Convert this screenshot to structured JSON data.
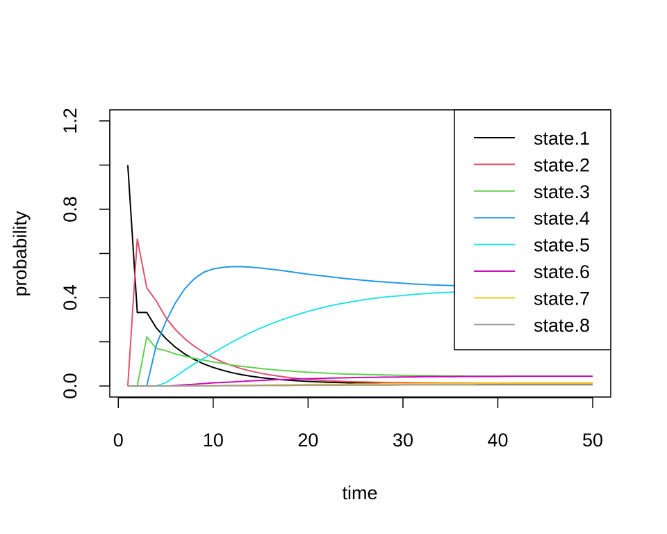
{
  "chart_data": {
    "type": "line",
    "title": "",
    "xlabel": "time",
    "ylabel": "probability",
    "xlim": [
      -0.9,
      51.9
    ],
    "ylim": [
      -0.05,
      1.25
    ],
    "xticks": [
      0,
      10,
      20,
      30,
      40,
      50
    ],
    "xtick_labels": [
      "0",
      "10",
      "20",
      "30",
      "40",
      "50"
    ],
    "yticks": [
      0.0,
      0.2,
      0.4,
      0.6,
      0.8,
      1.0,
      1.2
    ],
    "ytick_labels": [
      "0.0",
      "",
      "0.4",
      "",
      "0.8",
      "",
      "1.2"
    ],
    "grid": false,
    "legend": {
      "position": "top-right"
    },
    "x": [
      1,
      2,
      3,
      4,
      5,
      6,
      7,
      8,
      9,
      10,
      11,
      12,
      13,
      14,
      15,
      16,
      17,
      18,
      19,
      20,
      21,
      22,
      23,
      24,
      25,
      26,
      27,
      28,
      29,
      30,
      31,
      32,
      33,
      34,
      35,
      36,
      37,
      38,
      39,
      40,
      41,
      42,
      43,
      44,
      45,
      46,
      47,
      48,
      49,
      50
    ],
    "series": [
      {
        "name": "state.1",
        "color": "#000000",
        "values": [
          1.0,
          0.333,
          0.333,
          0.263,
          0.215,
          0.176,
          0.145,
          0.12,
          0.1,
          0.084,
          0.071,
          0.06,
          0.051,
          0.044,
          0.038,
          0.033,
          0.029,
          0.026,
          0.023,
          0.021,
          0.019,
          0.017,
          0.016,
          0.015,
          0.014,
          0.013,
          0.012,
          0.012,
          0.011,
          0.011,
          0.01,
          0.01,
          0.01,
          0.01,
          0.01,
          0.01,
          0.01,
          0.01,
          0.01,
          0.01,
          0.01,
          0.01,
          0.01,
          0.01,
          0.01,
          0.01,
          0.01,
          0.01,
          0.01,
          0.01
        ]
      },
      {
        "name": "state.2",
        "color": "#DF536B",
        "values": [
          0.0,
          0.667,
          0.444,
          0.385,
          0.31,
          0.256,
          0.214,
          0.18,
          0.152,
          0.128,
          0.108,
          0.092,
          0.078,
          0.067,
          0.058,
          0.05,
          0.044,
          0.038,
          0.034,
          0.03,
          0.027,
          0.024,
          0.022,
          0.02,
          0.019,
          0.018,
          0.017,
          0.016,
          0.015,
          0.015,
          0.014,
          0.014,
          0.014,
          0.013,
          0.013,
          0.013,
          0.013,
          0.013,
          0.013,
          0.013,
          0.013,
          0.013,
          0.013,
          0.013,
          0.013,
          0.013,
          0.013,
          0.013,
          0.013,
          0.013
        ]
      },
      {
        "name": "state.3",
        "color": "#61D04F",
        "values": [
          0.0,
          0.0,
          0.222,
          0.17,
          0.16,
          0.145,
          0.135,
          0.125,
          0.117,
          0.109,
          0.102,
          0.095,
          0.089,
          0.084,
          0.079,
          0.075,
          0.071,
          0.068,
          0.065,
          0.062,
          0.06,
          0.058,
          0.056,
          0.054,
          0.053,
          0.052,
          0.051,
          0.05,
          0.049,
          0.048,
          0.048,
          0.047,
          0.047,
          0.046,
          0.046,
          0.046,
          0.045,
          0.045,
          0.045,
          0.045,
          0.045,
          0.045,
          0.045,
          0.045,
          0.045,
          0.045,
          0.045,
          0.045,
          0.045,
          0.045
        ]
      },
      {
        "name": "state.4",
        "color": "#2297E6",
        "values": [
          0.0,
          0.0,
          0.0,
          0.185,
          0.29,
          0.375,
          0.44,
          0.485,
          0.515,
          0.53,
          0.537,
          0.54,
          0.54,
          0.538,
          0.534,
          0.529,
          0.524,
          0.518,
          0.512,
          0.506,
          0.501,
          0.496,
          0.491,
          0.486,
          0.482,
          0.478,
          0.474,
          0.471,
          0.468,
          0.465,
          0.462,
          0.46,
          0.458,
          0.456,
          0.455,
          0.453,
          0.452,
          0.451,
          0.45,
          0.449,
          0.448,
          0.447,
          0.447,
          0.446,
          0.446,
          0.445,
          0.445,
          0.445,
          0.444,
          0.444
        ]
      },
      {
        "name": "state.5",
        "color": "#28E2E5",
        "values": [
          0.0,
          0.0,
          0.0,
          0.0,
          0.015,
          0.042,
          0.072,
          0.1,
          0.125,
          0.15,
          0.175,
          0.199,
          0.222,
          0.243,
          0.262,
          0.28,
          0.296,
          0.311,
          0.325,
          0.338,
          0.349,
          0.36,
          0.369,
          0.377,
          0.384,
          0.391,
          0.397,
          0.402,
          0.406,
          0.41,
          0.414,
          0.417,
          0.42,
          0.422,
          0.424,
          0.426,
          0.428,
          0.429,
          0.43,
          0.431,
          0.432,
          0.433,
          0.434,
          0.434,
          0.435,
          0.435,
          0.436,
          0.436,
          0.436,
          0.437
        ]
      },
      {
        "name": "state.6",
        "color": "#CD0BBC",
        "values": [
          0.0,
          0.0,
          0.0,
          0.0,
          0.0,
          0.002,
          0.005,
          0.008,
          0.011,
          0.014,
          0.016,
          0.018,
          0.021,
          0.023,
          0.025,
          0.027,
          0.029,
          0.03,
          0.032,
          0.033,
          0.034,
          0.035,
          0.036,
          0.037,
          0.038,
          0.039,
          0.039,
          0.04,
          0.04,
          0.041,
          0.041,
          0.042,
          0.042,
          0.042,
          0.042,
          0.043,
          0.043,
          0.043,
          0.043,
          0.043,
          0.044,
          0.044,
          0.044,
          0.044,
          0.044,
          0.044,
          0.044,
          0.044,
          0.044,
          0.044
        ]
      },
      {
        "name": "state.7",
        "color": "#F5C710",
        "values": [
          0.0,
          0.0,
          0.0,
          0.0,
          0.0,
          0.0,
          0.0,
          0.001,
          0.001,
          0.002,
          0.002,
          0.003,
          0.003,
          0.004,
          0.004,
          0.005,
          0.005,
          0.006,
          0.006,
          0.007,
          0.007,
          0.008,
          0.008,
          0.008,
          0.009,
          0.009,
          0.009,
          0.01,
          0.01,
          0.01,
          0.01,
          0.011,
          0.011,
          0.011,
          0.011,
          0.011,
          0.011,
          0.012,
          0.012,
          0.012,
          0.012,
          0.012,
          0.012,
          0.012,
          0.012,
          0.012,
          0.012,
          0.012,
          0.012,
          0.012
        ]
      },
      {
        "name": "state.8",
        "color": "#9E9E9E",
        "values": [
          0.0,
          0.0,
          0.0,
          0.0,
          0.0,
          0.0,
          0.0,
          0.0,
          0.0,
          0.0,
          0.001,
          0.001,
          0.001,
          0.001,
          0.002,
          0.002,
          0.002,
          0.002,
          0.003,
          0.003,
          0.003,
          0.003,
          0.003,
          0.004,
          0.004,
          0.004,
          0.004,
          0.004,
          0.004,
          0.005,
          0.005,
          0.005,
          0.005,
          0.005,
          0.005,
          0.005,
          0.005,
          0.005,
          0.005,
          0.005,
          0.005,
          0.005,
          0.005,
          0.005,
          0.005,
          0.005,
          0.005,
          0.005,
          0.005,
          0.005
        ]
      }
    ]
  }
}
